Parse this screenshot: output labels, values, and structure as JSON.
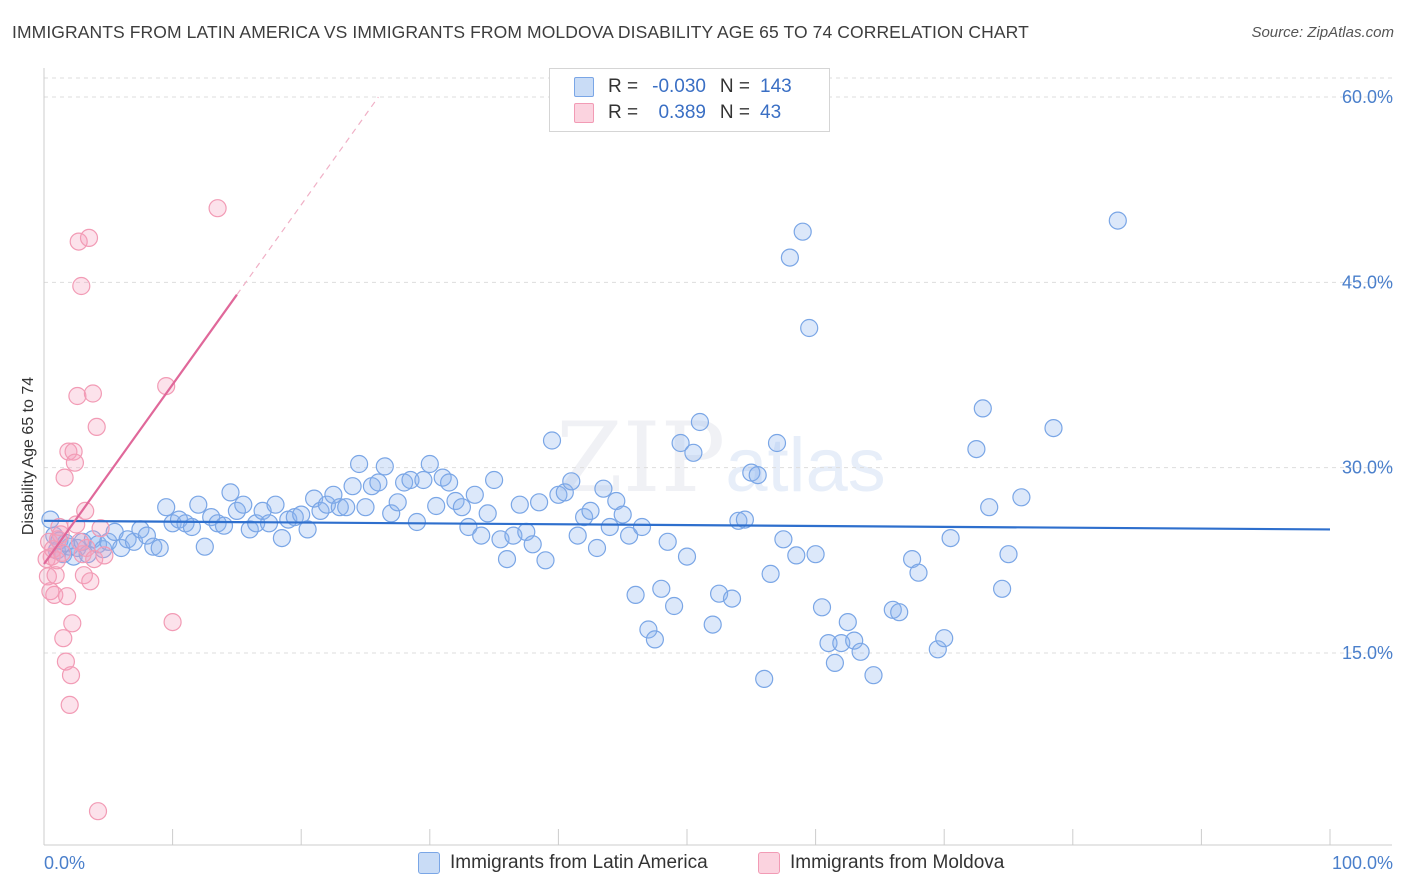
{
  "title": "IMMIGRANTS FROM LATIN AMERICA VS IMMIGRANTS FROM MOLDOVA DISABILITY AGE 65 TO 74 CORRELATION CHART",
  "source": "Source: ZipAtlas.com",
  "watermark": {
    "zip": "ZIP",
    "atlas": "atlas"
  },
  "legend": {
    "rows": [
      {
        "r_label": "R =",
        "r_value": "-0.030",
        "n_label": "N =",
        "n_value": "143",
        "color": "#7aa6e6"
      },
      {
        "r_label": "R =",
        "r_value": "0.389",
        "n_label": "N =",
        "n_value": "43",
        "color": "#f29bb5"
      }
    ]
  },
  "bottom_legend": [
    {
      "label": "Immigrants from Latin America",
      "color": "#7aa6e6"
    },
    {
      "label": "Immigrants from Moldova",
      "color": "#f29bb5"
    }
  ],
  "chart_data": {
    "type": "scatter",
    "title": "IMMIGRANTS FROM LATIN AMERICA VS IMMIGRANTS FROM MOLDOVA DISABILITY AGE 65 TO 74 CORRELATION CHART",
    "xlabel": "",
    "ylabel": "Disability Age 65 to 74",
    "xlim": [
      0,
      100
    ],
    "ylim": [
      0,
      61
    ],
    "x_ticks": [
      "0.0%",
      "100.0%"
    ],
    "y_ticks": [
      {
        "value": 15,
        "label": "15.0%"
      },
      {
        "value": 30,
        "label": "30.0%"
      },
      {
        "value": 45,
        "label": "45.0%"
      },
      {
        "value": 60,
        "label": "60.0%"
      }
    ],
    "grid": true,
    "legend_position": "top-center",
    "series": [
      {
        "name": "Immigrants from Latin America",
        "color": "#7aa6e6",
        "line_color": "#2e6fcd",
        "trend": {
          "x0": 0,
          "y0": 25.7,
          "x1": 100,
          "y1": 25.0
        },
        "points": [
          [
            0.5,
            25.8
          ],
          [
            0.8,
            24.5
          ],
          [
            1.0,
            23.3
          ],
          [
            1.2,
            24.1
          ],
          [
            1.5,
            23.0
          ],
          [
            1.7,
            23.9
          ],
          [
            2.0,
            23.6
          ],
          [
            2.3,
            22.8
          ],
          [
            2.6,
            23.5
          ],
          [
            3.0,
            24.0
          ],
          [
            3.4,
            23.0
          ],
          [
            3.8,
            24.2
          ],
          [
            4.2,
            23.8
          ],
          [
            4.6,
            23.4
          ],
          [
            5.0,
            24.0
          ],
          [
            5.5,
            24.8
          ],
          [
            6.0,
            23.5
          ],
          [
            6.5,
            24.2
          ],
          [
            7.0,
            24.0
          ],
          [
            7.5,
            25.0
          ],
          [
            8.0,
            24.5
          ],
          [
            8.5,
            23.6
          ],
          [
            9.0,
            23.5
          ],
          [
            9.5,
            26.8
          ],
          [
            10.0,
            25.5
          ],
          [
            10.5,
            25.8
          ],
          [
            11.0,
            25.5
          ],
          [
            11.5,
            25.2
          ],
          [
            12.0,
            27.0
          ],
          [
            12.5,
            23.6
          ],
          [
            13.0,
            26.0
          ],
          [
            13.5,
            25.5
          ],
          [
            14.0,
            25.3
          ],
          [
            14.5,
            28.0
          ],
          [
            15.0,
            26.5
          ],
          [
            15.5,
            27.0
          ],
          [
            16.0,
            25.0
          ],
          [
            16.5,
            25.5
          ],
          [
            17.0,
            26.5
          ],
          [
            17.5,
            25.5
          ],
          [
            18.0,
            27.0
          ],
          [
            18.5,
            24.3
          ],
          [
            19.0,
            25.8
          ],
          [
            19.5,
            26.0
          ],
          [
            20.0,
            26.2
          ],
          [
            20.5,
            25.0
          ],
          [
            21.0,
            27.5
          ],
          [
            21.5,
            26.5
          ],
          [
            22.0,
            27.0
          ],
          [
            22.5,
            27.8
          ],
          [
            23.0,
            26.8
          ],
          [
            23.5,
            26.8
          ],
          [
            24.0,
            28.5
          ],
          [
            24.5,
            30.3
          ],
          [
            25.0,
            26.8
          ],
          [
            25.5,
            28.5
          ],
          [
            26.0,
            28.8
          ],
          [
            26.5,
            30.1
          ],
          [
            27.0,
            26.3
          ],
          [
            27.5,
            27.2
          ],
          [
            28.0,
            28.8
          ],
          [
            28.5,
            29.0
          ],
          [
            29.0,
            25.6
          ],
          [
            29.5,
            29.0
          ],
          [
            30.0,
            30.3
          ],
          [
            30.5,
            26.9
          ],
          [
            31.0,
            29.2
          ],
          [
            31.5,
            28.8
          ],
          [
            32.0,
            27.3
          ],
          [
            32.5,
            26.8
          ],
          [
            33.0,
            25.2
          ],
          [
            33.5,
            27.8
          ],
          [
            34.0,
            24.5
          ],
          [
            34.5,
            26.3
          ],
          [
            35.0,
            29.0
          ],
          [
            35.5,
            24.2
          ],
          [
            36.0,
            22.6
          ],
          [
            36.5,
            24.5
          ],
          [
            37.0,
            27.0
          ],
          [
            37.5,
            24.8
          ],
          [
            38.0,
            23.8
          ],
          [
            38.5,
            27.2
          ],
          [
            39.0,
            22.5
          ],
          [
            39.5,
            32.2
          ],
          [
            40.0,
            27.8
          ],
          [
            40.5,
            28.0
          ],
          [
            41.0,
            28.9
          ],
          [
            41.5,
            24.5
          ],
          [
            42.0,
            26.0
          ],
          [
            42.5,
            26.5
          ],
          [
            43.0,
            23.5
          ],
          [
            43.5,
            28.3
          ],
          [
            44.0,
            25.2
          ],
          [
            44.5,
            27.3
          ],
          [
            45.0,
            26.2
          ],
          [
            45.5,
            24.5
          ],
          [
            46.0,
            19.7
          ],
          [
            46.5,
            25.2
          ],
          [
            47.0,
            16.9
          ],
          [
            47.5,
            16.1
          ],
          [
            48.0,
            20.2
          ],
          [
            48.5,
            24.0
          ],
          [
            49.0,
            18.8
          ],
          [
            49.5,
            32.0
          ],
          [
            50.0,
            22.8
          ],
          [
            50.5,
            31.2
          ],
          [
            51.0,
            33.7
          ],
          [
            52.0,
            17.3
          ],
          [
            52.5,
            19.8
          ],
          [
            53.5,
            19.4
          ],
          [
            54.0,
            25.7
          ],
          [
            54.5,
            25.8
          ],
          [
            55.0,
            29.6
          ],
          [
            55.5,
            29.4
          ],
          [
            56.0,
            12.9
          ],
          [
            56.5,
            21.4
          ],
          [
            57.0,
            32.0
          ],
          [
            57.5,
            24.2
          ],
          [
            58.0,
            47.0
          ],
          [
            58.5,
            22.9
          ],
          [
            59.0,
            49.1
          ],
          [
            59.5,
            41.3
          ],
          [
            60.0,
            23.0
          ],
          [
            60.5,
            18.7
          ],
          [
            61.0,
            15.8
          ],
          [
            61.5,
            14.2
          ],
          [
            62.0,
            15.8
          ],
          [
            62.5,
            17.5
          ],
          [
            63.0,
            16.0
          ],
          [
            63.5,
            15.1
          ],
          [
            64.5,
            13.2
          ],
          [
            66.0,
            18.5
          ],
          [
            66.5,
            18.3
          ],
          [
            67.5,
            22.6
          ],
          [
            68.0,
            21.5
          ],
          [
            69.5,
            15.3
          ],
          [
            70.0,
            16.2
          ],
          [
            70.5,
            24.3
          ],
          [
            72.5,
            31.5
          ],
          [
            73.0,
            34.8
          ],
          [
            73.5,
            26.8
          ],
          [
            74.5,
            20.2
          ],
          [
            75.0,
            23.0
          ],
          [
            76.0,
            27.6
          ],
          [
            78.5,
            33.2
          ],
          [
            83.5,
            50.0
          ]
        ]
      },
      {
        "name": "Immigrants from Moldova",
        "color": "#f29bb5",
        "line_color": "#e0689a",
        "trend": {
          "x0": 0,
          "y0": 22.2,
          "x1": 15,
          "y1": 44.0,
          "dashed_to": {
            "x": 26,
            "y": 60
          }
        },
        "points": [
          [
            0.2,
            22.6
          ],
          [
            0.3,
            21.2
          ],
          [
            0.4,
            24.0
          ],
          [
            0.5,
            20.0
          ],
          [
            0.6,
            22.8
          ],
          [
            0.7,
            23.4
          ],
          [
            0.8,
            19.7
          ],
          [
            0.9,
            21.3
          ],
          [
            1.0,
            22.5
          ],
          [
            1.1,
            24.2
          ],
          [
            1.2,
            25.2
          ],
          [
            1.3,
            24.6
          ],
          [
            1.4,
            23.1
          ],
          [
            1.5,
            16.2
          ],
          [
            1.6,
            29.2
          ],
          [
            1.7,
            14.3
          ],
          [
            1.8,
            19.6
          ],
          [
            1.9,
            31.3
          ],
          [
            2.0,
            10.8
          ],
          [
            2.1,
            13.2
          ],
          [
            2.2,
            17.4
          ],
          [
            2.3,
            31.3
          ],
          [
            2.4,
            30.4
          ],
          [
            2.5,
            25.4
          ],
          [
            2.6,
            35.8
          ],
          [
            2.7,
            48.3
          ],
          [
            2.8,
            24.0
          ],
          [
            2.9,
            44.7
          ],
          [
            3.0,
            23.0
          ],
          [
            3.1,
            21.3
          ],
          [
            3.2,
            26.5
          ],
          [
            3.3,
            23.5
          ],
          [
            3.5,
            48.6
          ],
          [
            3.6,
            20.8
          ],
          [
            3.8,
            36.0
          ],
          [
            3.9,
            22.6
          ],
          [
            4.1,
            33.3
          ],
          [
            4.2,
            2.2
          ],
          [
            4.4,
            25.1
          ],
          [
            4.7,
            22.9
          ],
          [
            9.5,
            36.6
          ],
          [
            10.0,
            17.5
          ],
          [
            13.5,
            51.0
          ]
        ]
      }
    ]
  }
}
